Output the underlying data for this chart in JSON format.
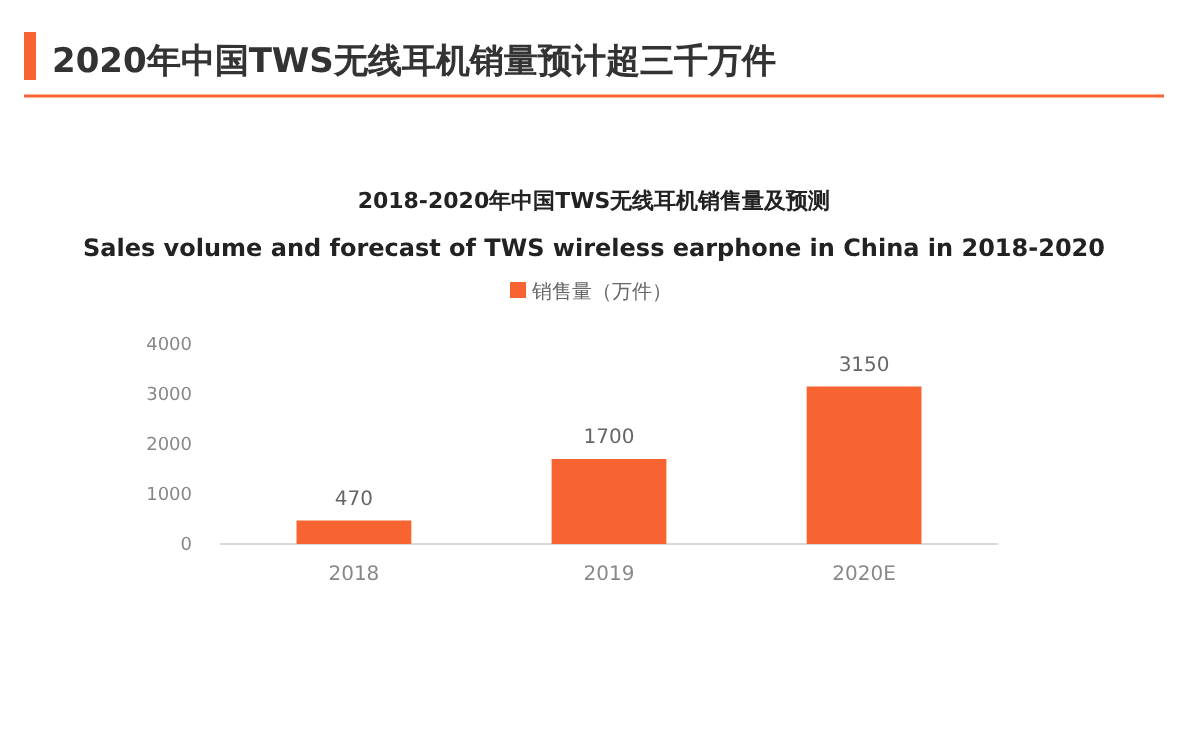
{
  "chart_data": {
    "type": "bar",
    "title": "2020年中国TWS无线耳机销量预计超三千万件",
    "subtitle": "2018-2020年中国TWS无线耳机销售量及预测\nSales volume and forecast of TWS wireless earphone in China in 2018-2020",
    "categories": [
      "2018",
      "2019",
      "2020E"
    ],
    "series": [
      {
        "name": "销售量（万件）",
        "color": "#f86332",
        "values": [
          470,
          1700,
          3150
        ]
      }
    ],
    "ylim": [
      0,
      4000
    ],
    "yticks": [
      0,
      1000,
      2000,
      3000,
      4000
    ],
    "grid": false,
    "legend": "top",
    "data_labels": true
  }
}
